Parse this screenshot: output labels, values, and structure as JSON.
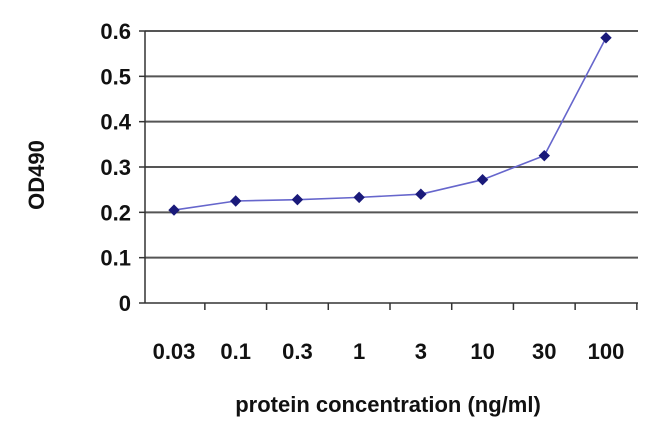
{
  "chart_data": {
    "type": "line",
    "title": "",
    "xlabel": "protein concentration (ng/ml)",
    "ylabel": "OD490",
    "categories": [
      "0.03",
      "0.1",
      "0.3",
      "1",
      "3",
      "10",
      "30",
      "100"
    ],
    "series": [
      {
        "values": [
          0.205,
          0.225,
          0.228,
          0.233,
          0.24,
          0.272,
          0.325,
          0.585
        ]
      }
    ],
    "ylim": [
      0,
      0.6
    ],
    "yticks": [
      "0",
      "0.1",
      "0.2",
      "0.3",
      "0.4",
      "0.5",
      "0.6"
    ],
    "grid": "horizontal",
    "legend": "none",
    "colors": {
      "line": "#6666cc",
      "marker": "#1a1a7a",
      "grid": "#555555",
      "axis": "#333333"
    }
  }
}
